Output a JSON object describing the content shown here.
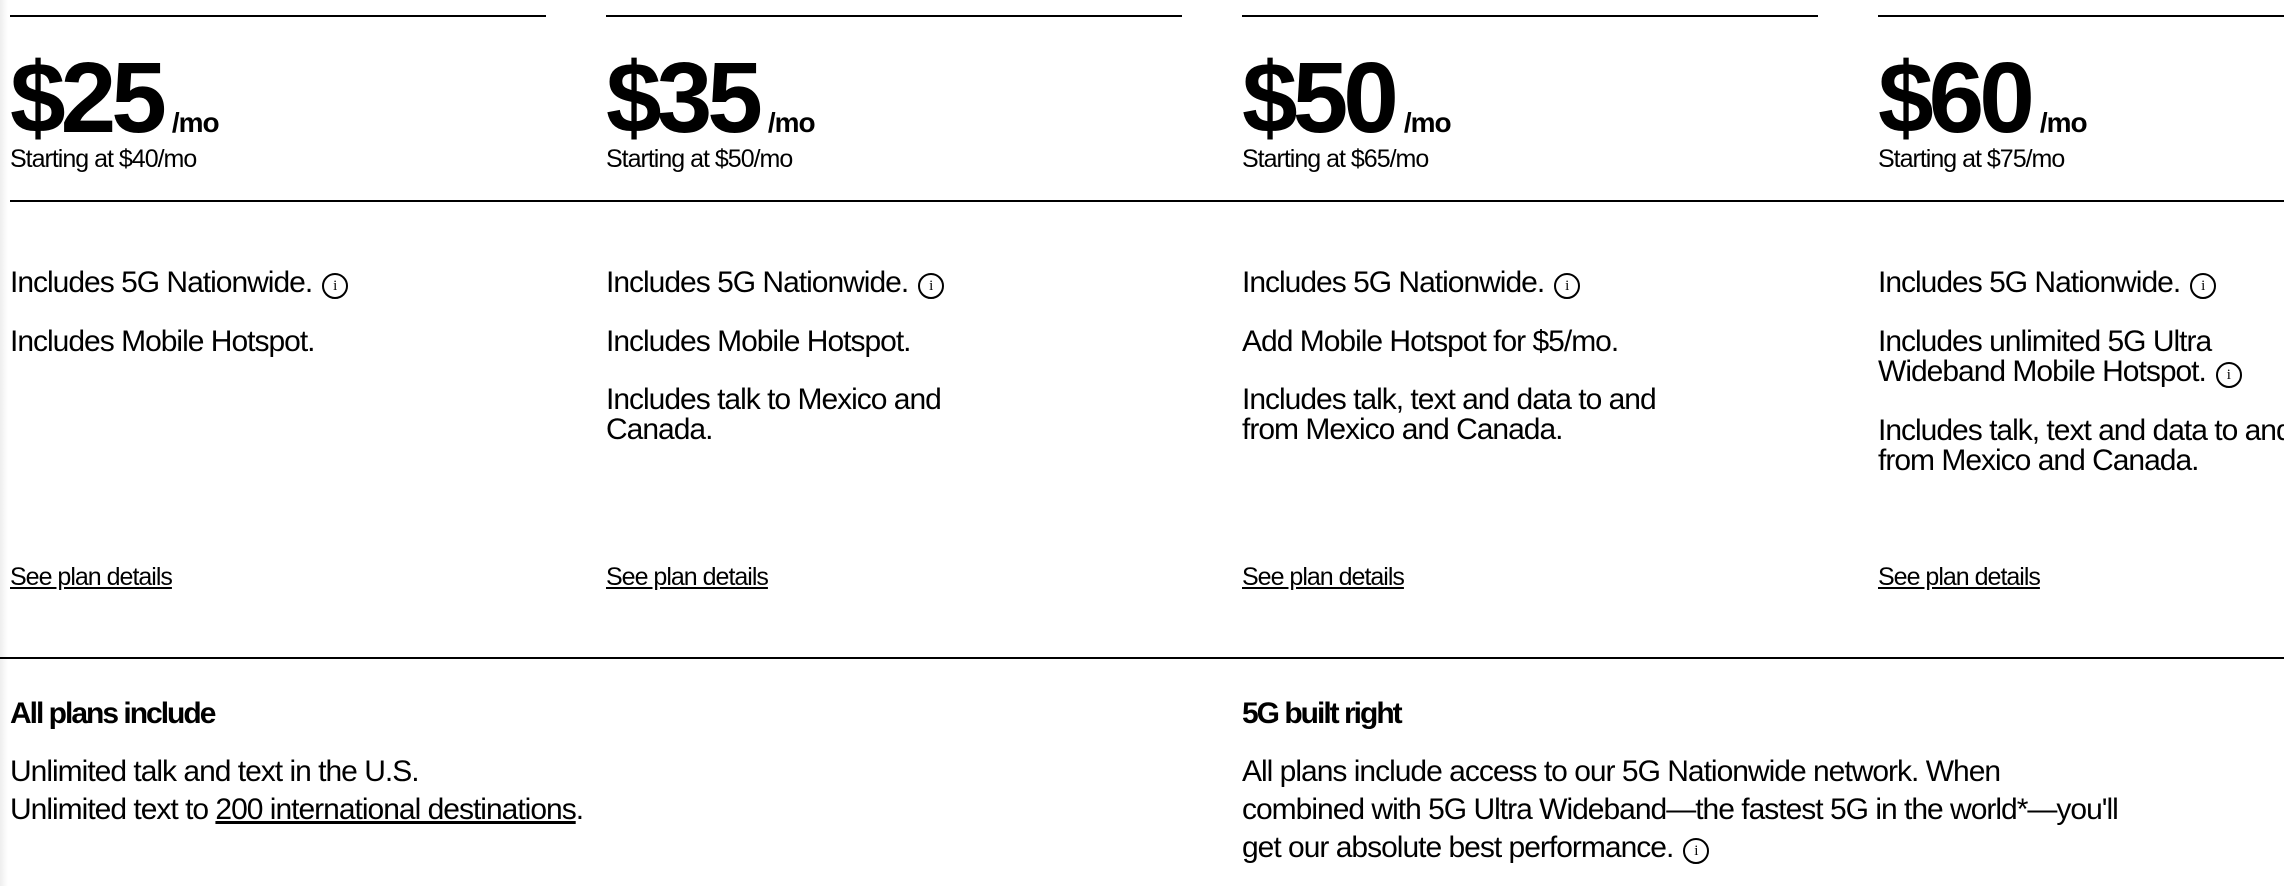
{
  "plans": [
    {
      "price": "$25",
      "per": "/mo",
      "starting": "Starting at $40/mo",
      "features": [
        {
          "text": "Includes 5G Nationwide.",
          "info": true
        },
        {
          "text": "Includes Mobile Hotspot.",
          "info": false
        }
      ],
      "details": "See plan details"
    },
    {
      "price": "$35",
      "per": "/mo",
      "starting": "Starting at $50/mo",
      "features": [
        {
          "text": "Includes 5G Nationwide.",
          "info": true
        },
        {
          "text": "Includes Mobile Hotspot.",
          "info": false
        },
        {
          "text": "Includes talk to Mexico and Canada.",
          "info": false
        }
      ],
      "details": "See plan details"
    },
    {
      "price": "$50",
      "per": "/mo",
      "starting": "Starting at $65/mo",
      "features": [
        {
          "text": "Includes 5G Nationwide.",
          "info": true
        },
        {
          "text": "Add Mobile Hotspot for $5/mo.",
          "info": false
        },
        {
          "text": "Includes talk, text and data to and from Mexico and Canada.",
          "info": false
        }
      ],
      "details": "See plan details"
    },
    {
      "price": "$60",
      "per": "/mo",
      "starting": "Starting at $75/mo",
      "features": [
        {
          "text": "Includes 5G Nationwide.",
          "info": true
        },
        {
          "text": "Includes unlimited 5G Ultra Wideband Mobile Hotspot.",
          "info": true
        },
        {
          "text": "Includes talk, text and data to and from Mexico and Canada.",
          "info": false
        }
      ],
      "details": "See plan details"
    }
  ],
  "info_icon": "info-circle-icon",
  "all_plans": {
    "title": "All plans include",
    "line1": "Unlimited talk and text in the U.S.",
    "line2_prefix": "Unlimited text to ",
    "line2_link": "200 international destinations",
    "line2_suffix": "."
  },
  "built_right": {
    "title": "5G built right",
    "body": "All plans include access to our 5G Nationwide network. When combined with 5G Ultra Wideband—the fastest 5G in the world*—you'll get our absolute best performance."
  }
}
